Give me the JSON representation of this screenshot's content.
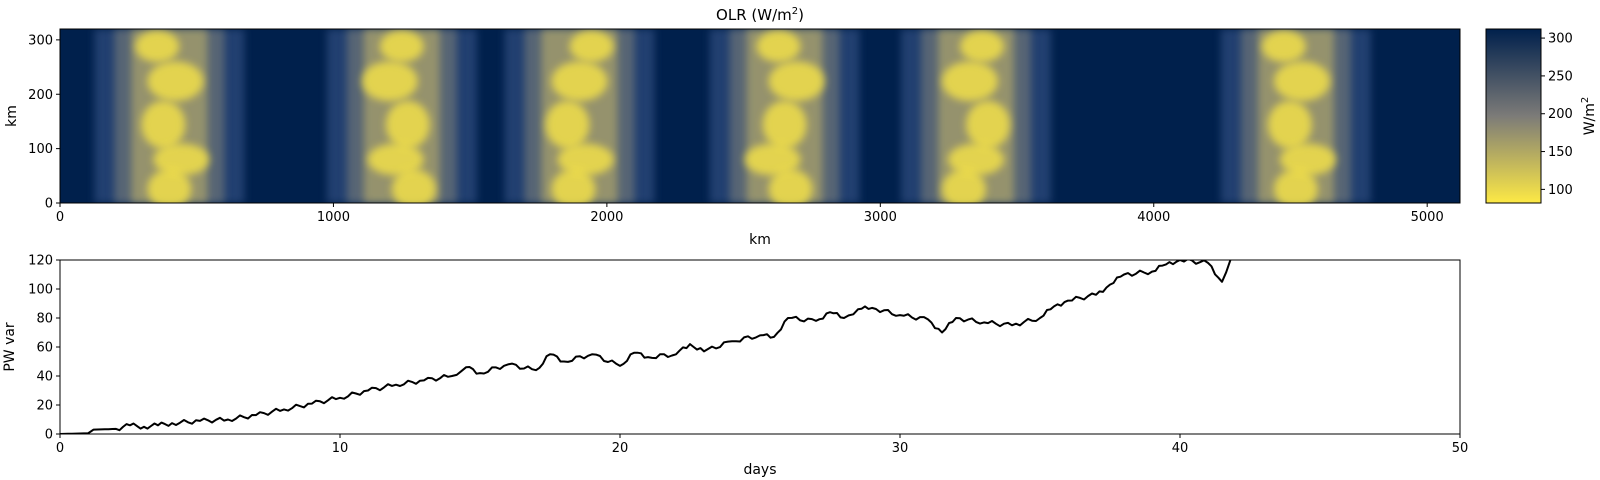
{
  "chart_data": [
    {
      "type": "heatmap",
      "title_main": "OLR (W/m",
      "title_sup": "2",
      "title_end": ")",
      "xlabel": "km",
      "ylabel": "km",
      "xlim": [
        0,
        5120
      ],
      "ylim": [
        0,
        320
      ],
      "xticks": [
        "0",
        "1000",
        "2000",
        "3000",
        "4000",
        "5000"
      ],
      "yticks": [
        "0",
        "100",
        "200",
        "300"
      ],
      "colormap": "cividis_r",
      "cmap_low_color": "#fde945",
      "cmap_mid_color": "#7c7b78",
      "cmap_high_color": "#00204c",
      "colorbar": {
        "label_main": "W/m",
        "label_sup": "2",
        "range": [
          82,
          312
        ],
        "ticks": [
          "100",
          "150",
          "200",
          "250",
          "300"
        ]
      },
      "convective_bands_center_km": [
        400,
        1250,
        1900,
        2650,
        3350,
        4520
      ]
    },
    {
      "type": "line",
      "xlabel": "days",
      "ylabel": "PW var",
      "xlim": [
        0,
        50
      ],
      "ylim": [
        0,
        120
      ],
      "xticks": [
        "0",
        "10",
        "20",
        "30",
        "40",
        "50"
      ],
      "yticks": [
        "0",
        "20",
        "40",
        "60",
        "80",
        "100",
        "120"
      ],
      "line_color": "#000000",
      "x": [
        0,
        1,
        1.2,
        2,
        2.5,
        3,
        3.5,
        4,
        5,
        6,
        7,
        8,
        9,
        10,
        11,
        12,
        13,
        14,
        14.5,
        15,
        16,
        17,
        17.5,
        18,
        19,
        20,
        20.5,
        21,
        22,
        22.5,
        23,
        24,
        25,
        25.5,
        26,
        27,
        27.5,
        28,
        28.5,
        29,
        30,
        31,
        31.5,
        32,
        33,
        34,
        35,
        35.5,
        36,
        37,
        37.5,
        38,
        39,
        39.5,
        40,
        41,
        41.5,
        41.8
      ],
      "y": [
        0,
        0.5,
        3,
        3.5,
        6,
        5,
        6,
        7.5,
        9,
        10,
        13,
        17,
        21,
        25,
        30,
        34,
        37,
        40,
        46,
        42,
        48,
        44,
        55,
        50,
        55,
        47,
        56,
        53,
        55,
        62,
        57,
        64,
        68,
        67,
        80,
        78,
        84,
        80,
        86,
        87,
        82,
        79,
        70,
        80,
        77,
        75,
        80,
        88,
        92,
        96,
        103,
        110,
        112,
        117,
        120,
        118,
        105,
        120
      ]
    }
  ]
}
